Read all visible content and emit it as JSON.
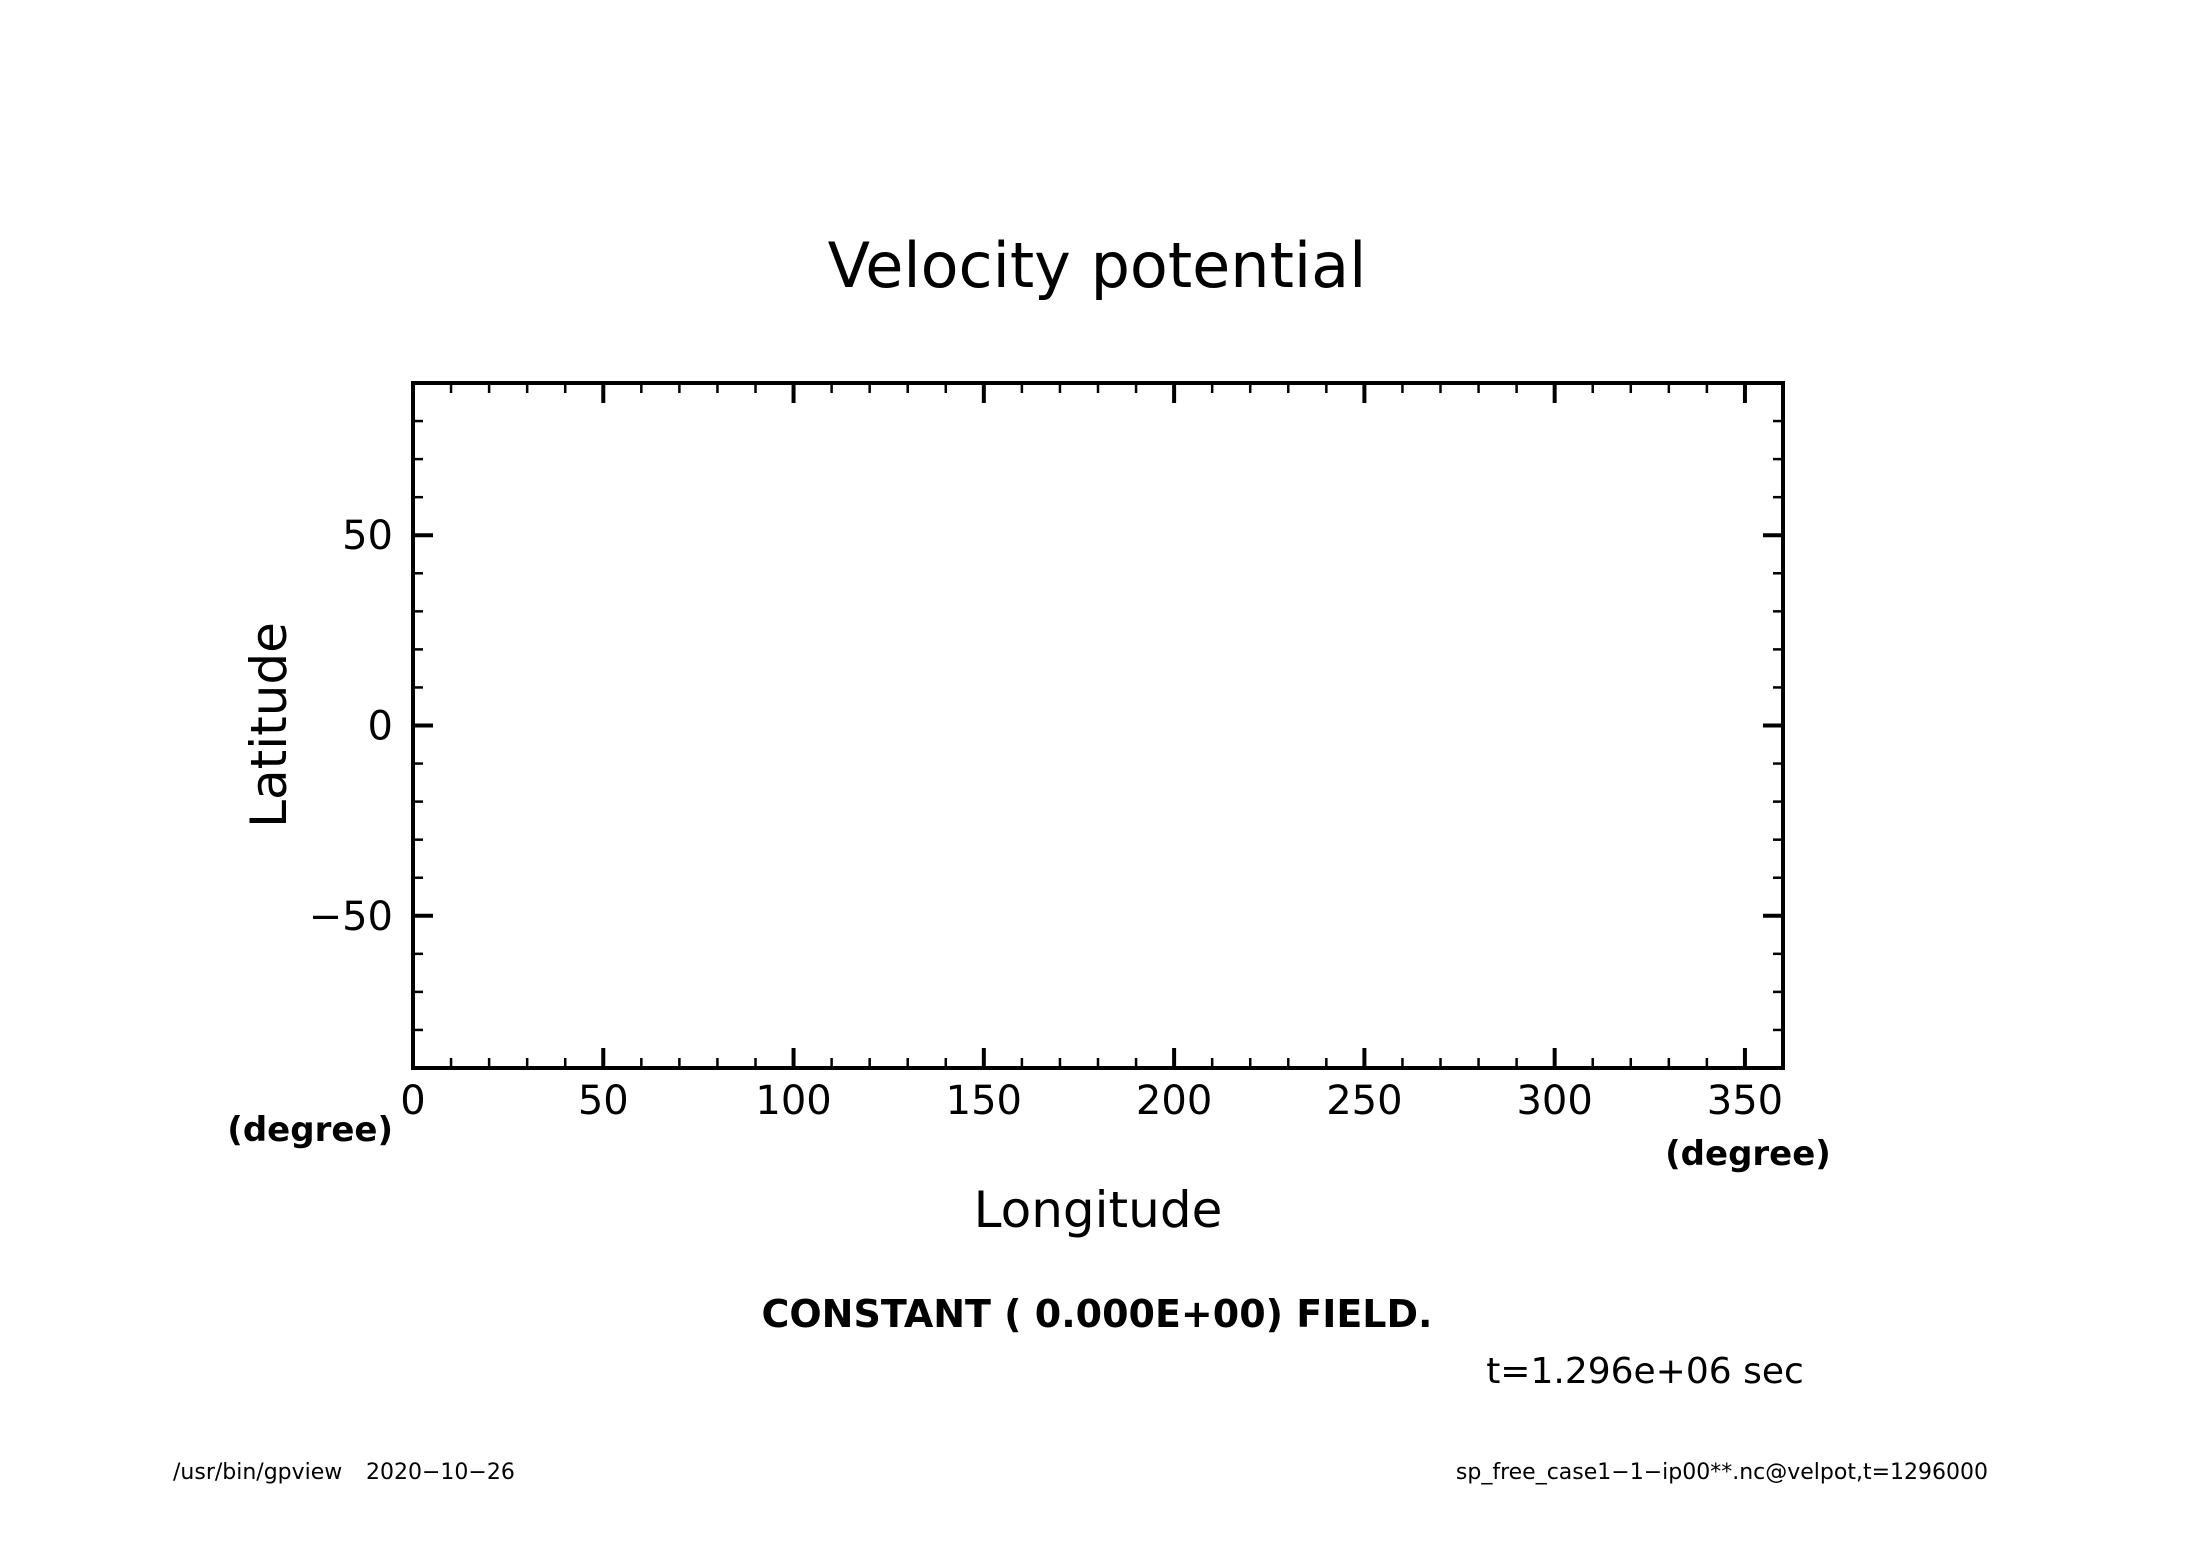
{
  "chart_data": {
    "type": "heatmap",
    "title": "Velocity potential",
    "xlabel": "Longitude",
    "ylabel": "Latitude",
    "x_unit": "(degree)",
    "y_unit": "(degree)",
    "xlim": [
      0,
      360
    ],
    "ylim": [
      -90,
      90
    ],
    "x_major_ticks": [
      0,
      50,
      100,
      150,
      200,
      250,
      300,
      350
    ],
    "x_tick_labels": [
      "0",
      "50",
      "100",
      "150",
      "200",
      "250",
      "300",
      "350"
    ],
    "x_minor_step": 10,
    "y_major_ticks": [
      -50,
      0,
      50
    ],
    "y_tick_labels": [
      "−50",
      "0",
      "50"
    ],
    "y_minor_step": 10,
    "grid": false,
    "field_value": 0,
    "field_note": "CONSTANT ( 0.000E+00) FIELD.",
    "time_label": "t=1.296e+06 sec"
  },
  "footer": {
    "program": "/usr/bin/gpview",
    "date": "2020−10−26",
    "source": "sp_free_case1−1−ip00**.nc@velpot,t=1296000"
  },
  "colors": {
    "line": "#000000",
    "background": "#ffffff"
  }
}
